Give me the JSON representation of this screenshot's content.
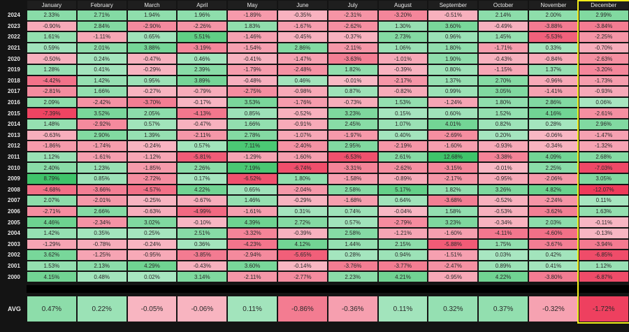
{
  "chart_data": {
    "type": "heatmap",
    "months": [
      "January",
      "February",
      "March",
      "April",
      "May",
      "June",
      "July",
      "August",
      "September",
      "October",
      "November",
      "December"
    ],
    "highlighted_month": "December",
    "rows": [
      {
        "year": "2024",
        "values": [
          2.33,
          2.71,
          1.94,
          1.96,
          -1.89,
          -0.35,
          -2.31,
          -3.2,
          -0.51,
          2.14,
          2.0,
          2.99
        ]
      },
      {
        "year": "2023",
        "values": [
          -0.9,
          2.84,
          -2.9,
          -2.26,
          1.83,
          -1.67,
          -2.62,
          1.3,
          3.6,
          -0.49,
          -3.88,
          -3.84
        ]
      },
      {
        "year": "2022",
        "values": [
          1.61,
          -1.11,
          0.65,
          5.51,
          -1.46,
          -0.45,
          -0.37,
          2.73,
          0.96,
          1.45,
          -5.53,
          -2.25
        ]
      },
      {
        "year": "2021",
        "values": [
          0.59,
          2.01,
          3.88,
          -3.19,
          -1.54,
          2.86,
          -2.11,
          1.06,
          1.8,
          -1.71,
          0.33,
          -0.7
        ]
      },
      {
        "year": "2020",
        "values": [
          -0.5,
          0.24,
          -0.47,
          0.46,
          -0.41,
          -1.47,
          -3.63,
          -1.01,
          1.9,
          -0.43,
          -0.84,
          -2.63
        ]
      },
      {
        "year": "2019",
        "values": [
          1.28,
          0.41,
          -0.29,
          2.39,
          -1.79,
          -2.48,
          1.82,
          -0.39,
          0.8,
          -1.15,
          1.37,
          -3.2
        ]
      },
      {
        "year": "2018",
        "values": [
          -4.42,
          1.42,
          0.95,
          3.89,
          -0.48,
          0.46,
          -0.01,
          -2.17,
          1.37,
          2.7,
          -0.96,
          -1.73
        ]
      },
      {
        "year": "2017",
        "values": [
          -2.81,
          1.66,
          -0.27,
          -0.79,
          -2.75,
          -0.98,
          0.87,
          -0.82,
          0.99,
          3.05,
          -1.41,
          -0.93
        ]
      },
      {
        "year": "2016",
        "values": [
          2.09,
          -2.42,
          -3.7,
          -0.17,
          3.53,
          -1.76,
          -0.73,
          1.53,
          -1.24,
          1.8,
          2.86,
          0.06
        ]
      },
      {
        "year": "2015",
        "values": [
          -7.39,
          3.52,
          2.05,
          -4.13,
          0.85,
          -0.52,
          3.23,
          0.15,
          0.6,
          1.52,
          4.16,
          -2.61
        ]
      },
      {
        "year": "2014",
        "values": [
          1.48,
          -2.92,
          0.57,
          -0.47,
          1.66,
          -0.91,
          2.45,
          1.07,
          4.01,
          0.82,
          0.28,
          2.96
        ]
      },
      {
        "year": "2013",
        "values": [
          -0.63,
          2.9,
          1.39,
          -2.11,
          2.78,
          -1.07,
          -1.97,
          0.4,
          -2.69,
          0.2,
          -0.06,
          -1.47
        ]
      },
      {
        "year": "2012",
        "values": [
          -1.86,
          -1.74,
          -0.24,
          0.57,
          7.11,
          -2.4,
          2.95,
          -2.19,
          -1.6,
          -0.93,
          -0.34,
          -1.32
        ]
      },
      {
        "year": "2011",
        "values": [
          1.12,
          -1.61,
          -1.12,
          -5.81,
          -1.29,
          -1.6,
          -6.53,
          2.61,
          12.68,
          -3.38,
          4.09,
          2.68
        ]
      },
      {
        "year": "2010",
        "values": [
          2.4,
          1.23,
          -1.85,
          2.26,
          7.19,
          -6.74,
          -3.31,
          -2.62,
          -3.15,
          -0.01,
          2.25,
          -7.03
        ]
      },
      {
        "year": "2009",
        "values": [
          8.79,
          0.85,
          -2.72,
          0.17,
          -6.52,
          1.8,
          -1.58,
          -0.89,
          -2.17,
          -0.95,
          -2.06,
          3.05
        ]
      },
      {
        "year": "2008",
        "values": [
          -4.68,
          -3.66,
          -4.57,
          4.22,
          0.65,
          -2.04,
          2.58,
          5.17,
          1.82,
          3.26,
          4.82,
          -12.07
        ]
      },
      {
        "year": "2007",
        "values": [
          2.07,
          -2.01,
          -0.25,
          -0.67,
          1.46,
          -0.29,
          -1.68,
          0.64,
          -3.68,
          -0.52,
          -2.24,
          0.11
        ]
      },
      {
        "year": "2006",
        "values": [
          -2.71,
          2.66,
          -0.63,
          -4.99,
          -1.61,
          0.31,
          0.74,
          -0.04,
          1.58,
          -0.53,
          -3.62,
          1.63
        ]
      },
      {
        "year": "2005",
        "values": [
          4.46,
          -2.34,
          3.02,
          -0.1,
          4.39,
          2.72,
          0.57,
          -2.79,
          3.23,
          -0.34,
          2.03,
          -0.11
        ]
      },
      {
        "year": "2004",
        "values": [
          1.42,
          0.35,
          0.25,
          2.51,
          -3.32,
          -0.39,
          2.58,
          -1.21,
          -1.6,
          -4.11,
          -4.6,
          -0.13
        ]
      },
      {
        "year": "2003",
        "values": [
          -1.29,
          -0.78,
          -0.24,
          0.36,
          -4.23,
          4.12,
          1.44,
          2.15,
          -5.88,
          1.75,
          -3.67,
          -3.94
        ]
      },
      {
        "year": "2002",
        "values": [
          3.62,
          -1.25,
          -0.95,
          -3.85,
          -2.94,
          -5.65,
          0.28,
          0.94,
          -1.51,
          0.03,
          0.42,
          -6.85
        ]
      },
      {
        "year": "2001",
        "values": [
          1.53,
          2.13,
          4.29,
          -0.43,
          3.6,
          -0.14,
          -3.76,
          -3.77,
          -2.47,
          0.89,
          0.41,
          1.12
        ]
      },
      {
        "year": "2000",
        "values": [
          4.15,
          0.48,
          0.02,
          3.14,
          -2.11,
          -2.77,
          2.23,
          4.21,
          -0.95,
          4.22,
          -3.8,
          -6.87
        ]
      }
    ],
    "avg": {
      "label": "AVG",
      "values": [
        0.47,
        0.22,
        -0.05,
        -0.06,
        0.11,
        -0.86,
        -0.36,
        0.11,
        0.32,
        0.37,
        -0.32,
        -1.72
      ]
    },
    "colors": {
      "positive_light": "#a8e6c1",
      "positive_dark": "#3fc46a",
      "negative_light": "#f8b8c4",
      "negative_dark": "#ee3a5a",
      "background": "#141414",
      "highlight_border": "#f2ee1a",
      "header_text": "#e8e8e8"
    }
  }
}
